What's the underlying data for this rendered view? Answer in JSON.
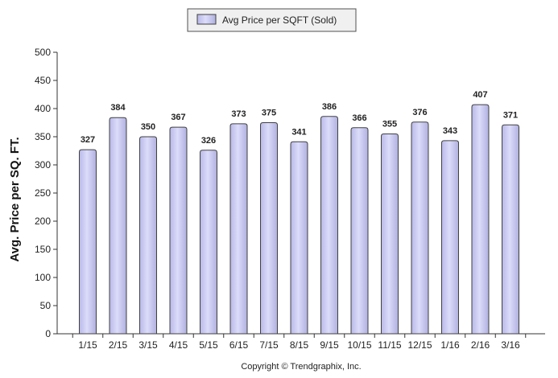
{
  "chart_data": {
    "type": "bar",
    "categories": [
      "1/15",
      "2/15",
      "3/15",
      "4/15",
      "5/15",
      "6/15",
      "7/15",
      "8/15",
      "9/15",
      "10/15",
      "11/15",
      "12/15",
      "1/16",
      "2/16",
      "3/16"
    ],
    "series": [
      {
        "name": "Avg Price per SQFT (Sold)",
        "values": [
          327,
          384,
          350,
          367,
          326,
          373,
          375,
          341,
          386,
          366,
          355,
          376,
          343,
          407,
          371
        ]
      }
    ],
    "ylabel": "Avg. Price per SQ. FT.",
    "xlabel": "",
    "ylim": [
      0,
      500
    ],
    "yticks": [
      0,
      50,
      100,
      150,
      200,
      250,
      300,
      350,
      400,
      450,
      500
    ],
    "grid": false,
    "legend": "top-center",
    "bar_color": "#c8c8f0",
    "bar_stroke": "#404040"
  },
  "copyright": "Copyright © Trendgraphix, Inc."
}
